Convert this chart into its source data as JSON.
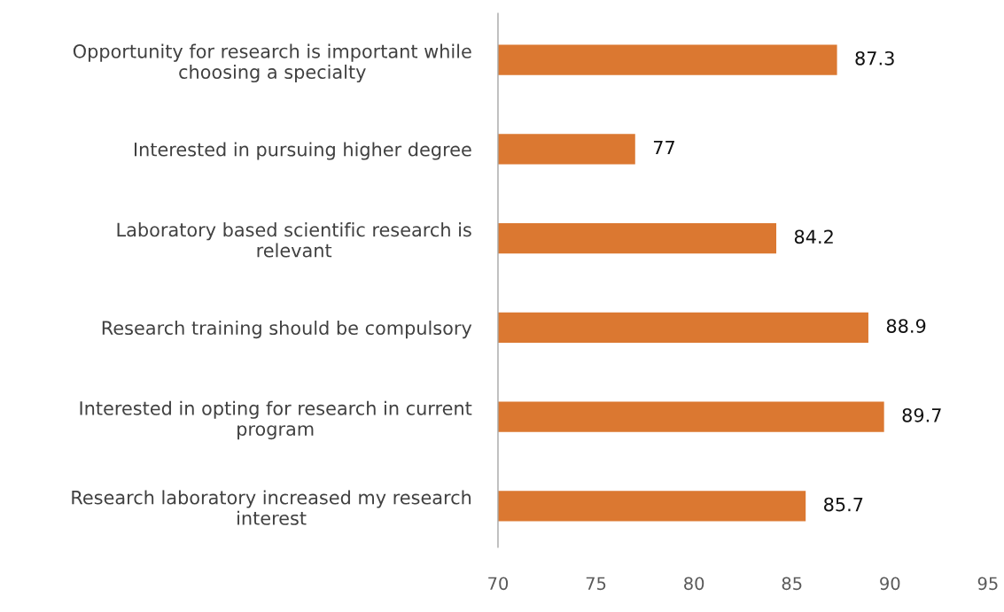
{
  "chart_data": {
    "type": "bar",
    "orientation": "horizontal",
    "categories": [
      "Opportunity for research is important while\nchoosing a specialty",
      "Interested in pursuing higher degree",
      "Laboratory based scientific research is\nrelevant",
      "Research training should be compulsory",
      "Interested in opting for research in current\nprogram",
      "Research laboratory increased my research\ninterest"
    ],
    "values": [
      87.3,
      77,
      84.2,
      88.9,
      89.7,
      85.7
    ],
    "color": "#db7831",
    "xlim": [
      70,
      95
    ],
    "xticks": [
      70,
      75,
      80,
      85,
      90,
      95
    ],
    "data_labels": true
  }
}
